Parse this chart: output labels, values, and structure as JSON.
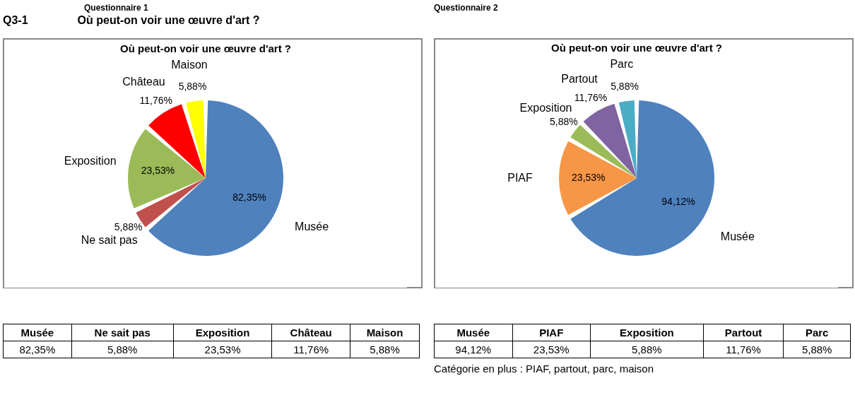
{
  "chart_data": [
    {
      "type": "pie",
      "title": "Où peut-on voir une œuvre d'art ?",
      "categories": [
        "Musée",
        "Ne sait pas",
        "Exposition",
        "Château",
        "Maison"
      ],
      "values": [
        82.35,
        5.88,
        23.53,
        11.76,
        5.88
      ],
      "value_labels": [
        "82,35%",
        "5,88%",
        "23,53%",
        "11,76%",
        "5,88%"
      ],
      "colors": [
        "#4f81bd",
        "#c0504d",
        "#9bbb59",
        "#ff0000",
        "#ffff00"
      ],
      "annotations": [
        "Q3-1",
        "Questionnaire 1",
        "Où peut-on voir une œuvre d'art ?"
      ]
    },
    {
      "type": "pie",
      "title": "Où peut-on voir une œuvre d'art ?",
      "categories": [
        "Musée",
        "PIAF",
        "Exposition",
        "Partout",
        "Parc"
      ],
      "values": [
        94.12,
        23.53,
        5.88,
        11.76,
        5.88
      ],
      "value_labels": [
        "94,12%",
        "23,53%",
        "5,88%",
        "11,76%",
        "5,88%"
      ],
      "colors": [
        "#4f81bd",
        "#f79646",
        "#9bbb59",
        "#8064a2",
        "#4bacc6"
      ],
      "annotations": [
        "Questionnaire 2",
        "Catégorie en plus : PIAF, partout, parc, maison"
      ]
    }
  ]
}
